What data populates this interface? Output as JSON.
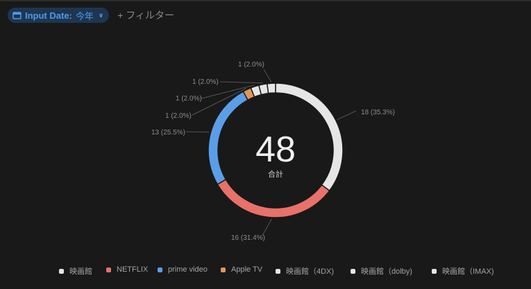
{
  "filter": {
    "chip_key": "Input Date:",
    "chip_value": "今年",
    "add_filter_label": "+ フィルター",
    "icons": {
      "calendar": "calendar-icon",
      "chevron": "chevron-down-icon"
    }
  },
  "center": {
    "value": "48",
    "label": "合計"
  },
  "colors": {
    "bg": "#191919",
    "white": "#e6e6e6",
    "red": "#e8716a",
    "blue": "#5b9ee8",
    "orange": "#e0965a"
  },
  "chart_data": {
    "type": "pie",
    "subtype": "donut",
    "total": 48,
    "total_label": "合計",
    "categories": [
      "映画館",
      "NETFLIX",
      "prime video",
      "Apple TV",
      "映画館（4DX)",
      "映画館（dolby)",
      "映画館（IMAX)"
    ],
    "values": [
      18,
      16,
      13,
      1,
      1,
      1,
      1
    ],
    "percents": [
      35.3,
      31.4,
      25.5,
      2.0,
      2.0,
      2.0,
      2.0
    ],
    "colors": [
      "#e6e6e6",
      "#e8716a",
      "#5b9ee8",
      "#e0965a",
      "#e6e6e6",
      "#e6e6e6",
      "#e6e6e6"
    ],
    "data_labels": [
      "18 (35.3%)",
      "16 (31.4%)",
      "13 (25.5%)",
      "1 (2.0%)",
      "1 (2.0%)",
      "1 (2.0%)",
      "1 (2.0%)"
    ],
    "legend_position": "bottom"
  },
  "legend": [
    {
      "label": "映画館",
      "color": "#e6e6e6"
    },
    {
      "label": "NETFLIX",
      "color": "#e8716a"
    },
    {
      "label": "prime video",
      "color": "#5b9ee8"
    },
    {
      "label": "Apple TV",
      "color": "#e0965a"
    },
    {
      "label": "映画館（4DX)",
      "color": "#e6e6e6"
    },
    {
      "label": "映画館（dolby)",
      "color": "#e6e6e6"
    },
    {
      "label": "映画館（IMAX)",
      "color": "#e6e6e6"
    }
  ]
}
